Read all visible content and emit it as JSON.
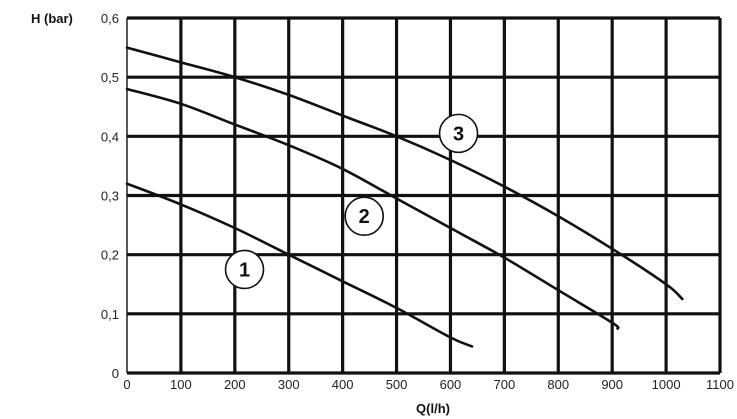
{
  "chart_data": {
    "type": "line",
    "xlabel": "Q(l/h)",
    "ylabel": "H (bar)",
    "xlim": [
      0,
      1100
    ],
    "ylim": [
      0,
      0.6
    ],
    "x_ticks": [
      "0",
      "100",
      "200",
      "300",
      "400",
      "500",
      "600",
      "700",
      "800",
      "900",
      "1000",
      "1100"
    ],
    "y_ticks": [
      "0",
      "0,1",
      "0,2",
      "0,3",
      "0,4",
      "0,5",
      "0,6"
    ],
    "grid": true,
    "series": [
      {
        "name": "1",
        "x": [
          0,
          100,
          200,
          300,
          400,
          500,
          600,
          640
        ],
        "y": [
          0.32,
          0.285,
          0.245,
          0.2,
          0.155,
          0.11,
          0.06,
          0.045
        ]
      },
      {
        "name": "2",
        "x": [
          0,
          100,
          200,
          300,
          400,
          500,
          600,
          700,
          800,
          900,
          910
        ],
        "y": [
          0.48,
          0.455,
          0.42,
          0.385,
          0.345,
          0.295,
          0.245,
          0.195,
          0.14,
          0.085,
          0.075
        ]
      },
      {
        "name": "3",
        "x": [
          0,
          100,
          200,
          300,
          400,
          500,
          600,
          700,
          800,
          900,
          1000,
          1030
        ],
        "y": [
          0.55,
          0.525,
          0.5,
          0.47,
          0.435,
          0.4,
          0.36,
          0.315,
          0.265,
          0.21,
          0.15,
          0.125
        ]
      }
    ],
    "curve_labels": [
      {
        "text": "1",
        "x": 218,
        "y": 0.175
      },
      {
        "text": "2",
        "x": 440,
        "y": 0.265
      },
      {
        "text": "3",
        "x": 615,
        "y": 0.405
      }
    ]
  }
}
